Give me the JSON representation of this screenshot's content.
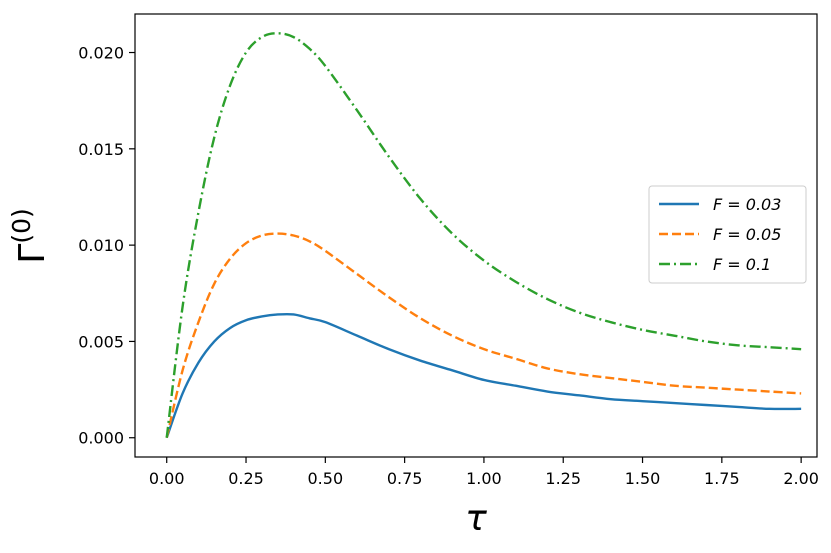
{
  "chart_data": {
    "type": "line",
    "xlabel": "τ",
    "ylabel_base": "Γ",
    "ylabel_sup": "(0)",
    "xlim": [
      -0.1,
      2.05
    ],
    "ylim": [
      -0.001,
      0.022
    ],
    "grid": false,
    "legend_position": "right",
    "xticks": [
      0.0,
      0.25,
      0.5,
      0.75,
      1.0,
      1.25,
      1.5,
      1.75,
      2.0
    ],
    "xtick_labels": [
      "0.00",
      "0.25",
      "0.50",
      "0.75",
      "1.00",
      "1.25",
      "1.50",
      "1.75",
      "2.00"
    ],
    "yticks": [
      0.0,
      0.005,
      0.01,
      0.015,
      0.02
    ],
    "ytick_labels": [
      "0.000",
      "0.005",
      "0.010",
      "0.015",
      "0.020"
    ],
    "x": [
      0.0,
      0.05,
      0.1,
      0.15,
      0.2,
      0.25,
      0.3,
      0.35,
      0.4,
      0.45,
      0.5,
      0.6,
      0.7,
      0.8,
      0.9,
      1.0,
      1.1,
      1.2,
      1.3,
      1.4,
      1.5,
      1.6,
      1.7,
      1.8,
      1.9,
      2.0
    ],
    "series": [
      {
        "name": "F = 0.03",
        "legend_label": "F = 0.03",
        "color": "#1f77b4",
        "dash": "solid",
        "values": [
          0.0,
          0.0023,
          0.0039,
          0.005,
          0.0057,
          0.0061,
          0.0063,
          0.0064,
          0.0064,
          0.0062,
          0.006,
          0.0053,
          0.0046,
          0.004,
          0.0035,
          0.003,
          0.0027,
          0.0024,
          0.0022,
          0.002,
          0.0019,
          0.0018,
          0.0017,
          0.0016,
          0.0015,
          0.0015
        ]
      },
      {
        "name": "F = 0.05",
        "legend_label": "F = 0.05",
        "color": "#ff7f0e",
        "dash": "dashed",
        "values": [
          0.0,
          0.0035,
          0.006,
          0.008,
          0.0093,
          0.0101,
          0.0105,
          0.0106,
          0.0105,
          0.0102,
          0.0097,
          0.0085,
          0.0073,
          0.0062,
          0.0053,
          0.0046,
          0.0041,
          0.0036,
          0.0033,
          0.0031,
          0.0029,
          0.0027,
          0.0026,
          0.0025,
          0.0024,
          0.0023
        ]
      },
      {
        "name": "F = 0.1",
        "legend_label": "F = 0.1",
        "color": "#2ca02c",
        "dash": "dashdot",
        "values": [
          0.0,
          0.0068,
          0.0117,
          0.0156,
          0.0183,
          0.02,
          0.0208,
          0.021,
          0.0208,
          0.0202,
          0.0193,
          0.017,
          0.0146,
          0.0124,
          0.0106,
          0.0092,
          0.0081,
          0.0072,
          0.0065,
          0.006,
          0.0056,
          0.0053,
          0.005,
          0.0048,
          0.0047,
          0.0046
        ]
      }
    ]
  }
}
